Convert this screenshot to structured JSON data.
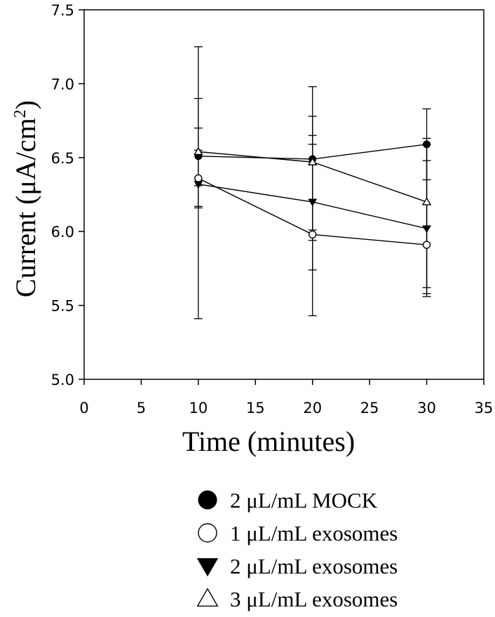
{
  "chart_data": {
    "type": "line",
    "xlabel": "Time (minutes)",
    "ylabel_main": "Current (μA/cm",
    "ylabel_sup": "2",
    "ylabel_close": ")",
    "xlim": [
      0,
      35
    ],
    "ylim": [
      5.0,
      7.5
    ],
    "x_ticks": [
      "0",
      "5",
      "10",
      "15",
      "20",
      "25",
      "30",
      "35"
    ],
    "y_ticks": [
      "5.0",
      "5.5",
      "6.0",
      "6.5",
      "7.0",
      "7.5"
    ],
    "grid": false,
    "legend_position": "bottom",
    "x": [
      10,
      20,
      30
    ],
    "series": [
      {
        "name": "2 μL/mL MOCK",
        "marker": "filled-circle",
        "values": [
          6.51,
          6.49,
          6.59
        ],
        "err_low": [
          5.41,
          5.74,
          6.35
        ],
        "err_high": [
          6.7,
          6.78,
          6.83
        ]
      },
      {
        "name": "1 μL/mL exosomes",
        "marker": "open-circle",
        "values": [
          6.36,
          5.98,
          5.91
        ],
        "err_low": [
          6.17,
          5.43,
          5.62
        ],
        "err_high": [
          6.9,
          6.59,
          6.63
        ]
      },
      {
        "name": "2 μL/mL exosomes",
        "marker": "filled-triangle-down",
        "values": [
          6.32,
          6.2,
          6.02
        ],
        "err_low": [
          6.16,
          5.94,
          5.58
        ],
        "err_high": [
          6.55,
          6.65,
          6.48
        ]
      },
      {
        "name": "3 μL/mL exosomes",
        "marker": "open-triangle-up",
        "values": [
          6.54,
          6.47,
          6.2
        ],
        "err_low": [
          6.31,
          6.01,
          5.56
        ],
        "err_high": [
          7.25,
          6.98,
          6.59
        ]
      }
    ]
  }
}
